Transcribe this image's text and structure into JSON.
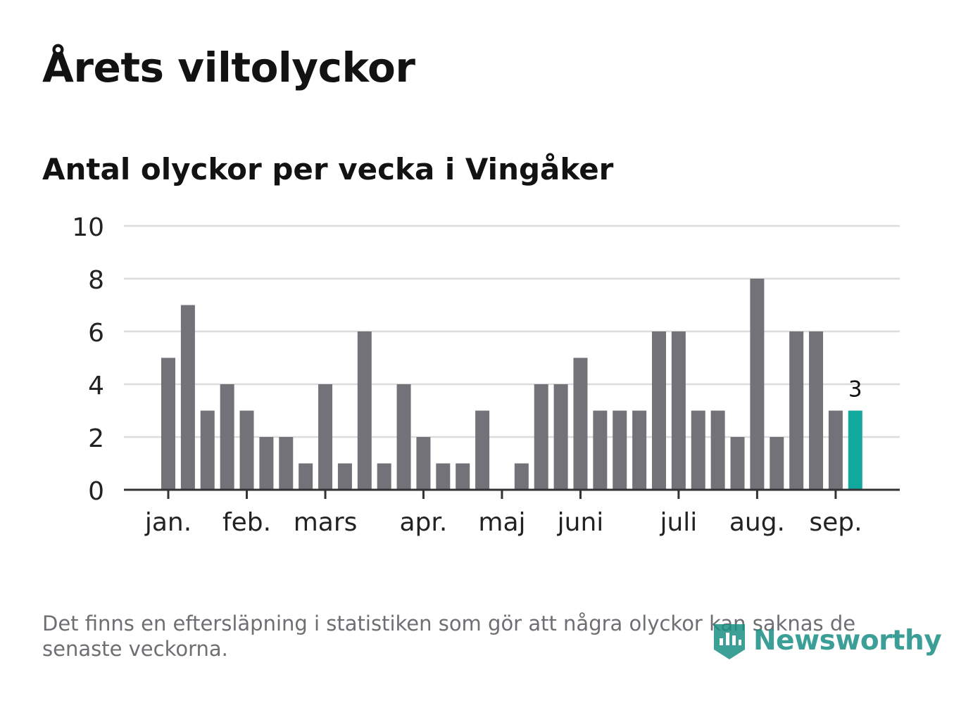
{
  "title": "Årets viltolyckor",
  "subtitle": "Antal olyckor per vecka i Vingåker",
  "footnote": "Det finns en eftersläpning i statistiken som gör att några olyckor kan saknas de senaste veckorna.",
  "logo": {
    "text": "Newsworthy",
    "icon": "newsworthy-logo-icon"
  },
  "colors": {
    "bar": "#737278",
    "highlight": "#13a89e",
    "grid": "#dcdcdc",
    "axis": "#333333",
    "text": "#222222"
  },
  "chart_data": {
    "type": "bar",
    "x_unit": "week",
    "values": [
      5,
      7,
      3,
      4,
      3,
      2,
      2,
      1,
      4,
      1,
      6,
      1,
      4,
      2,
      1,
      1,
      3,
      0,
      1,
      4,
      4,
      5,
      3,
      3,
      3,
      6,
      6,
      3,
      3,
      2,
      8,
      2,
      6,
      6,
      3,
      3
    ],
    "highlight_index": 35,
    "highlight_label": "3",
    "ylim": [
      0,
      10
    ],
    "yticks": [
      0,
      2,
      4,
      6,
      8,
      10
    ],
    "month_labels": [
      {
        "label": "jan.",
        "week": 1
      },
      {
        "label": "feb.",
        "week": 5
      },
      {
        "label": "mars",
        "week": 9
      },
      {
        "label": "apr.",
        "week": 14
      },
      {
        "label": "maj",
        "week": 18
      },
      {
        "label": "juni",
        "week": 22
      },
      {
        "label": "juli",
        "week": 27
      },
      {
        "label": "aug.",
        "week": 31
      },
      {
        "label": "sep.",
        "week": 35
      }
    ],
    "grid": true,
    "legend": false
  }
}
